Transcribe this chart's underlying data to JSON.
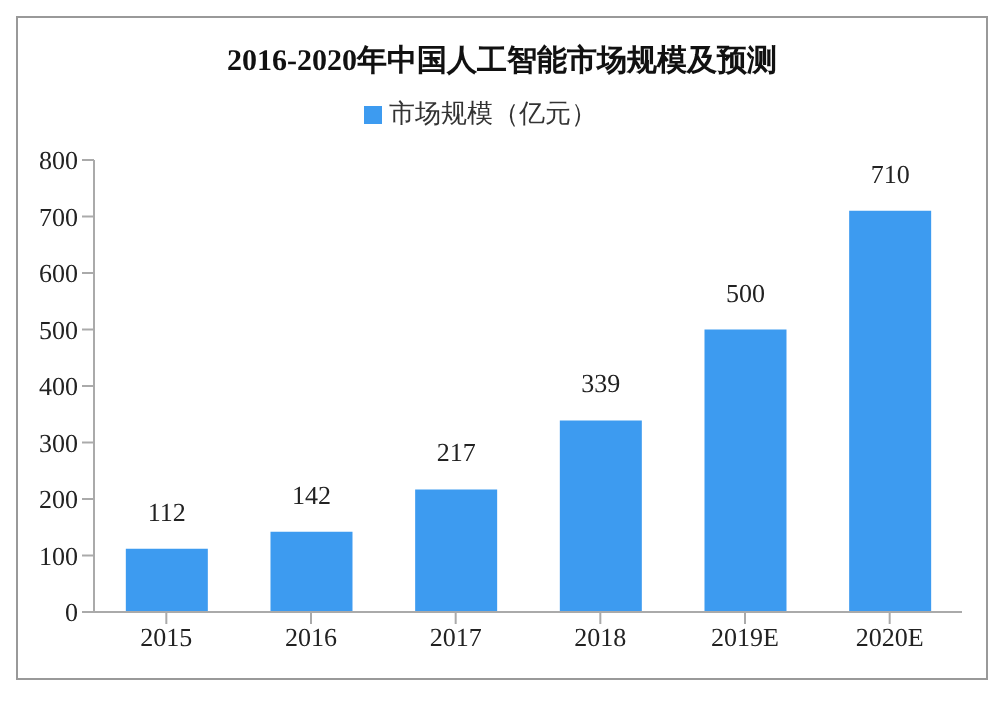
{
  "chart_data": {
    "type": "bar",
    "title": "2016-2020年中国人工智能市场规模及预测",
    "categories": [
      "2015",
      "2016",
      "2017",
      "2018",
      "2019E",
      "2020E"
    ],
    "series": [
      {
        "name": "市场规模（亿元）",
        "color": "#3d9bf0",
        "values": [
          112,
          142,
          217,
          339,
          500,
          710
        ]
      }
    ],
    "ylim": [
      0,
      800
    ],
    "yticks": [
      0,
      100,
      200,
      300,
      400,
      500,
      600,
      700,
      800
    ],
    "grid": false,
    "legend": "top",
    "data_labels": true
  }
}
